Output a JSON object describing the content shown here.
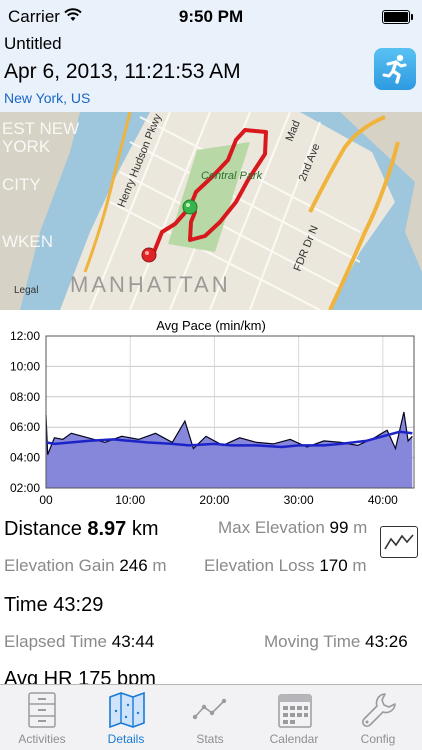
{
  "status_bar": {
    "carrier": "Carrier",
    "time": "9:50 PM"
  },
  "activity": {
    "name": "Untitled",
    "datetime": "Apr 6, 2013, 11:21:53 AM",
    "location": "New York, US"
  },
  "map": {
    "labels": {
      "central_park": "Central Park",
      "manhattan": "MANHATTAN",
      "legal": "Legal",
      "street1": "Henry Hudson Pkwy",
      "street2": "2nd Ave",
      "street3": "FDR Dr N",
      "area1": "EST NEW",
      "area2": "YORK",
      "area3": "CITY",
      "area4": "WKEN",
      "street4": "Mad"
    }
  },
  "chart_data": {
    "type": "area",
    "title": "Avg Pace (min/km)",
    "x_ticks": [
      "00",
      "10:00",
      "20:00",
      "30:00",
      "40:00"
    ],
    "y_ticks": [
      "12:00",
      "10:00",
      "08:00",
      "06:00",
      "04:00",
      "02:00"
    ],
    "xlim_min": [
      0,
      43.7
    ],
    "ylim_min": [
      2,
      12
    ],
    "series": [
      {
        "values_minutes_elapsed": [
          0,
          1,
          3,
          5,
          8,
          10,
          12,
          15,
          17,
          20,
          22,
          25,
          28,
          30,
          33,
          35,
          38,
          40,
          42,
          43.5
        ],
        "avg_pace_min_per_km": [
          5.0,
          4.9,
          5.0,
          5.1,
          5.2,
          5.1,
          5.0,
          4.9,
          4.8,
          4.9,
          4.8,
          4.8,
          4.7,
          4.8,
          4.8,
          4.9,
          5.1,
          5.4,
          5.7,
          5.6
        ]
      },
      {
        "values_minutes_elapsed": [
          0,
          0.2,
          1,
          2,
          3,
          5,
          7,
          9,
          11,
          13,
          15,
          16.5,
          17.5,
          19,
          21,
          23,
          25,
          27,
          29,
          31,
          33,
          35,
          37,
          39,
          40.5,
          41.5,
          42.5,
          43,
          43.5
        ],
        "pace_min_per_km": [
          6.8,
          4.2,
          5.3,
          5.2,
          5.6,
          5.3,
          5.0,
          5.4,
          5.2,
          5.6,
          5.0,
          6.4,
          4.6,
          5.4,
          4.8,
          5.3,
          5.0,
          4.9,
          5.2,
          4.7,
          5.1,
          5.0,
          4.8,
          5.3,
          5.8,
          4.6,
          7.0,
          5.1,
          5.4
        ]
      }
    ]
  },
  "stats": {
    "distance": {
      "label": "Distance",
      "value": "8.97",
      "unit": "km"
    },
    "max_elevation": {
      "label": "Max Elevation",
      "value": "99",
      "unit": "m"
    },
    "elevation_gain": {
      "label": "Elevation Gain",
      "value": "246",
      "unit": "m"
    },
    "elevation_loss": {
      "label": "Elevation Loss",
      "value": "170",
      "unit": "m"
    },
    "time": {
      "label": "Time",
      "value": "43:29"
    },
    "elapsed_time": {
      "label": "Elapsed Time",
      "value": "43:44"
    },
    "moving_time": {
      "label": "Moving Time",
      "value": "43:26"
    },
    "avg_hr": {
      "label": "Avg HR",
      "value": "175",
      "unit": "bpm"
    }
  },
  "tabs": [
    {
      "label": "Activities",
      "icon": "filing-cabinet-icon",
      "active": false
    },
    {
      "label": "Details",
      "icon": "map-icon",
      "active": true
    },
    {
      "label": "Stats",
      "icon": "stats-icon",
      "active": false
    },
    {
      "label": "Calendar",
      "icon": "calendar-icon",
      "active": false
    },
    {
      "label": "Config",
      "icon": "wrench-icon",
      "active": false
    }
  ],
  "colors": {
    "accent": "#1a7ad6",
    "route": "#d9181e",
    "pace_fill": "#7f80d8",
    "avg_line": "#1c24c8"
  }
}
